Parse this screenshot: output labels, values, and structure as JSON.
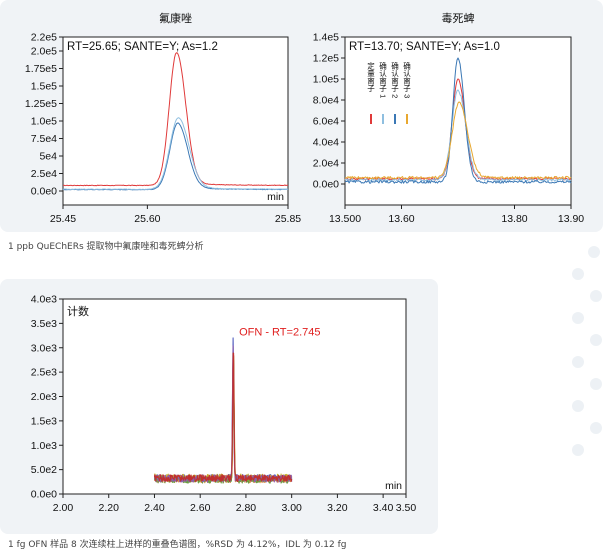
{
  "captions": {
    "top": "1 ppb QuEChERs 提取物中氟康唑和毒死蜱分析",
    "bottom": "1 fg OFN 样品 8 次连续柱上进样的重叠色谱图，%RSD 为 4.12%，IDL 为 0.12 fg"
  },
  "chart_data": [
    {
      "type": "line",
      "title": "氟康唑",
      "annotation": "RT=25.65; SANTE=Y; As=1.2",
      "xunit": "min",
      "xlim": [
        25.45,
        25.85
      ],
      "ylim": [
        -20000,
        220000
      ],
      "x_ticks": [
        25.45,
        25.6,
        25.85
      ],
      "x_tick_labels": [
        "25.45",
        "25.60",
        "25.85"
      ],
      "y_ticks": [
        0,
        25000,
        50000,
        75000,
        100000,
        125000,
        150000,
        175000,
        200000,
        220000
      ],
      "y_tick_labels": [
        "0.0e0",
        "2.5e4",
        "5e4",
        "7.5e4",
        "1.0e5",
        "1.25e5",
        "1.5e5",
        "1.75e5",
        "2.0e5",
        "2.2e5"
      ],
      "series": [
        {
          "color": "#e03a3a",
          "baseline": 8000,
          "peak_x": 25.652,
          "height": 190000,
          "sigma": 0.013
        },
        {
          "color": "#3b78b5",
          "baseline": 2000,
          "peak_x": 25.654,
          "height": 95000,
          "sigma": 0.014
        },
        {
          "color": "#8fbfe0",
          "baseline": 2500,
          "peak_x": 25.655,
          "height": 102000,
          "sigma": 0.015
        }
      ]
    },
    {
      "type": "line",
      "title": "毒死蜱",
      "annotation": "RT=13.70; SANTE=Y; As=1.0",
      "xunit": "",
      "xlim": [
        13.5,
        13.9
      ],
      "ylim": [
        -20000,
        140000
      ],
      "x_ticks": [
        13.5,
        13.6,
        13.8,
        13.9
      ],
      "x_tick_labels": [
        "13.500",
        "13.60",
        "13.80",
        "13.90"
      ],
      "y_ticks": [
        0,
        20000,
        40000,
        60000,
        80000,
        100000,
        120000,
        140000
      ],
      "y_tick_labels": [
        "0.0e0",
        "2.0e4",
        "4.0e4",
        "6.0e4",
        "8.0e4",
        "1.0e5",
        "1.2e5",
        "1.4e5"
      ],
      "legend": [
        "定量离子",
        "确认离子 1",
        "确认离子 2",
        "确认离子 3"
      ],
      "series": [
        {
          "color": "#e03a3a",
          "baseline": 5000,
          "peak_x": 13.7,
          "height": 95000,
          "sigma": 0.01
        },
        {
          "color": "#8fbfe0",
          "baseline": 4000,
          "peak_x": 13.7,
          "height": 85000,
          "sigma": 0.011
        },
        {
          "color": "#3b78b5",
          "baseline": 2000,
          "peak_x": 13.7,
          "height": 118000,
          "sigma": 0.009
        },
        {
          "color": "#e8a830",
          "baseline": 6000,
          "peak_x": 13.702,
          "height": 72000,
          "sigma": 0.012
        }
      ]
    },
    {
      "type": "line",
      "ylabel": "计数",
      "annotation": "OFN - RT=2.745",
      "xunit": "min",
      "xlim": [
        2.0,
        3.5
      ],
      "ylim": [
        0,
        4000
      ],
      "x_ticks": [
        2.0,
        2.2,
        2.4,
        2.6,
        2.8,
        3.0,
        3.2,
        3.4,
        3.5
      ],
      "x_tick_labels": [
        "2.00",
        "2.20",
        "2.40",
        "2.60",
        "2.80",
        "3.00",
        "3.20",
        "3.40",
        "3.50"
      ],
      "y_ticks": [
        0,
        500,
        1000,
        1500,
        2000,
        2500,
        3000,
        3500,
        4000
      ],
      "y_tick_labels": [
        "0.0e0",
        "5.0e2",
        "1.0e3",
        "1.5e3",
        "2.0e3",
        "2.5e3",
        "3.0e3",
        "3.5e3",
        "4.0e3"
      ],
      "x_range": [
        2.4,
        3.0
      ],
      "series": [
        {
          "color": "#5560c0",
          "baseline": 330,
          "peak_x": 2.744,
          "height": 3200
        },
        {
          "color": "#e03a3a",
          "baseline": 320,
          "peak_x": 2.745,
          "height": 3000
        },
        {
          "color": "#d85555",
          "baseline": 310,
          "peak_x": 2.745,
          "height": 2900
        },
        {
          "color": "#e89040",
          "baseline": 300,
          "peak_x": 2.745,
          "height": 2800
        },
        {
          "color": "#c8b030",
          "baseline": 340,
          "peak_x": 2.746,
          "height": 2850
        },
        {
          "color": "#6aa040",
          "baseline": 290,
          "peak_x": 2.745,
          "height": 2950
        },
        {
          "color": "#8a60b0",
          "baseline": 315,
          "peak_x": 2.744,
          "height": 3100
        },
        {
          "color": "#c03030",
          "baseline": 325,
          "peak_x": 2.745,
          "height": 3050
        }
      ]
    }
  ]
}
